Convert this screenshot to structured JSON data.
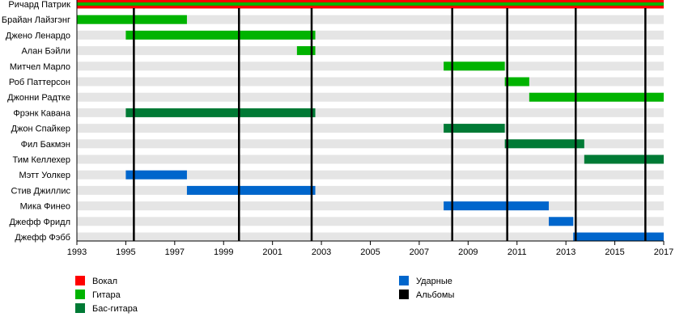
{
  "chart_data": {
    "type": "timeline",
    "xlim": [
      1993,
      2017
    ],
    "x_ticks": [
      1993,
      1995,
      1997,
      1999,
      2001,
      2003,
      2005,
      2007,
      2009,
      2011,
      2013,
      2015,
      2017
    ],
    "colors": {
      "vocal": "#ff0000",
      "guitar": "#00b300",
      "bass": "#007a35",
      "drums": "#0066cc",
      "albums": "#000000",
      "band": "#e5e5e5"
    },
    "members": [
      {
        "name": "Ричард Патрик",
        "periods": [
          {
            "role": "vocal",
            "start": 1993,
            "end": 2017
          },
          {
            "role": "guitar",
            "start": 1993,
            "end": 2017,
            "stripe": true
          }
        ]
      },
      {
        "name": "Брайан Лайзгэнг",
        "periods": [
          {
            "role": "guitar",
            "start": 1993,
            "end": 1997.5
          }
        ]
      },
      {
        "name": "Джено Ленардо",
        "periods": [
          {
            "role": "guitar",
            "start": 1995,
            "end": 2002.75
          }
        ]
      },
      {
        "name": "Алан Бэйли",
        "periods": [
          {
            "role": "guitar",
            "start": 2002,
            "end": 2002.75
          }
        ]
      },
      {
        "name": "Митчел Марло",
        "periods": [
          {
            "role": "guitar",
            "start": 2008,
            "end": 2010.5
          }
        ]
      },
      {
        "name": "Роб Паттерсон",
        "periods": [
          {
            "role": "guitar",
            "start": 2010.5,
            "end": 2011.5
          }
        ]
      },
      {
        "name": "Джонни Радтке",
        "periods": [
          {
            "role": "guitar",
            "start": 2011.5,
            "end": 2017
          }
        ]
      },
      {
        "name": "Фрэнк Кавана",
        "periods": [
          {
            "role": "bass",
            "start": 1995,
            "end": 2002.75
          }
        ]
      },
      {
        "name": "Джон Спайкер",
        "periods": [
          {
            "role": "bass",
            "start": 2008,
            "end": 2010.5
          }
        ]
      },
      {
        "name": "Фил Бакмэн",
        "periods": [
          {
            "role": "bass",
            "start": 2010.5,
            "end": 2013.75
          }
        ]
      },
      {
        "name": "Тим Келлехер",
        "periods": [
          {
            "role": "bass",
            "start": 2013.75,
            "end": 2017
          }
        ]
      },
      {
        "name": "Мэтт Уолкер",
        "periods": [
          {
            "role": "drums",
            "start": 1995,
            "end": 1997.5
          }
        ]
      },
      {
        "name": "Стив Джиллис",
        "periods": [
          {
            "role": "drums",
            "start": 1997.5,
            "end": 2002.75
          }
        ]
      },
      {
        "name": "Мика Финео",
        "periods": [
          {
            "role": "drums",
            "start": 2008,
            "end": 2012.3
          }
        ]
      },
      {
        "name": "Джефф Фридл",
        "periods": [
          {
            "role": "drums",
            "start": 2012.3,
            "end": 2013.3
          }
        ]
      },
      {
        "name": "Джефф Фэбб",
        "periods": [
          {
            "role": "drums",
            "start": 2013.3,
            "end": 2017
          }
        ]
      }
    ],
    "albums": [
      1995.33,
      1999.63,
      2002.6,
      2008.35,
      2010.6,
      2013.4,
      2016.25
    ],
    "legend": [
      {
        "role": "vocal",
        "label": "Вокал"
      },
      {
        "role": "guitar",
        "label": "Гитара"
      },
      {
        "role": "bass",
        "label": "Бас-гитара"
      },
      {
        "role": "drums",
        "label": "Ударные"
      },
      {
        "role": "albums",
        "label": "Альбомы"
      }
    ]
  }
}
